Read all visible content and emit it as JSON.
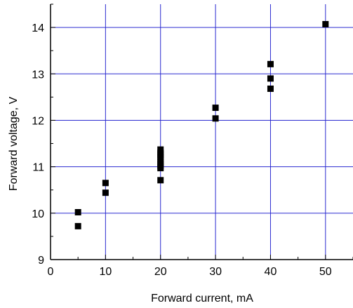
{
  "chart_data": {
    "type": "scatter",
    "title": "",
    "xlabel": "Forward current, mA",
    "ylabel": "Forward voltage, V",
    "xlim": [
      0,
      55
    ],
    "ylim": [
      9,
      14.5
    ],
    "x_ticks": [
      0,
      10,
      20,
      30,
      40,
      50
    ],
    "y_ticks": [
      9,
      10,
      11,
      12,
      13,
      14
    ],
    "grid": true,
    "grid_color": "#2a2ad0",
    "marker_color": "#000000",
    "series": [
      {
        "x": [
          5,
          5,
          10,
          10,
          20,
          20,
          20,
          20,
          20,
          20,
          20,
          20,
          20,
          20,
          30,
          30,
          40,
          40,
          40,
          50
        ],
        "y": [
          10.02,
          9.72,
          10.65,
          10.44,
          11.37,
          11.3,
          11.22,
          11.16,
          11.1,
          11.05,
          11.01,
          10.97,
          11.26,
          10.71,
          12.27,
          12.04,
          13.21,
          12.9,
          12.68,
          14.07
        ]
      }
    ]
  }
}
